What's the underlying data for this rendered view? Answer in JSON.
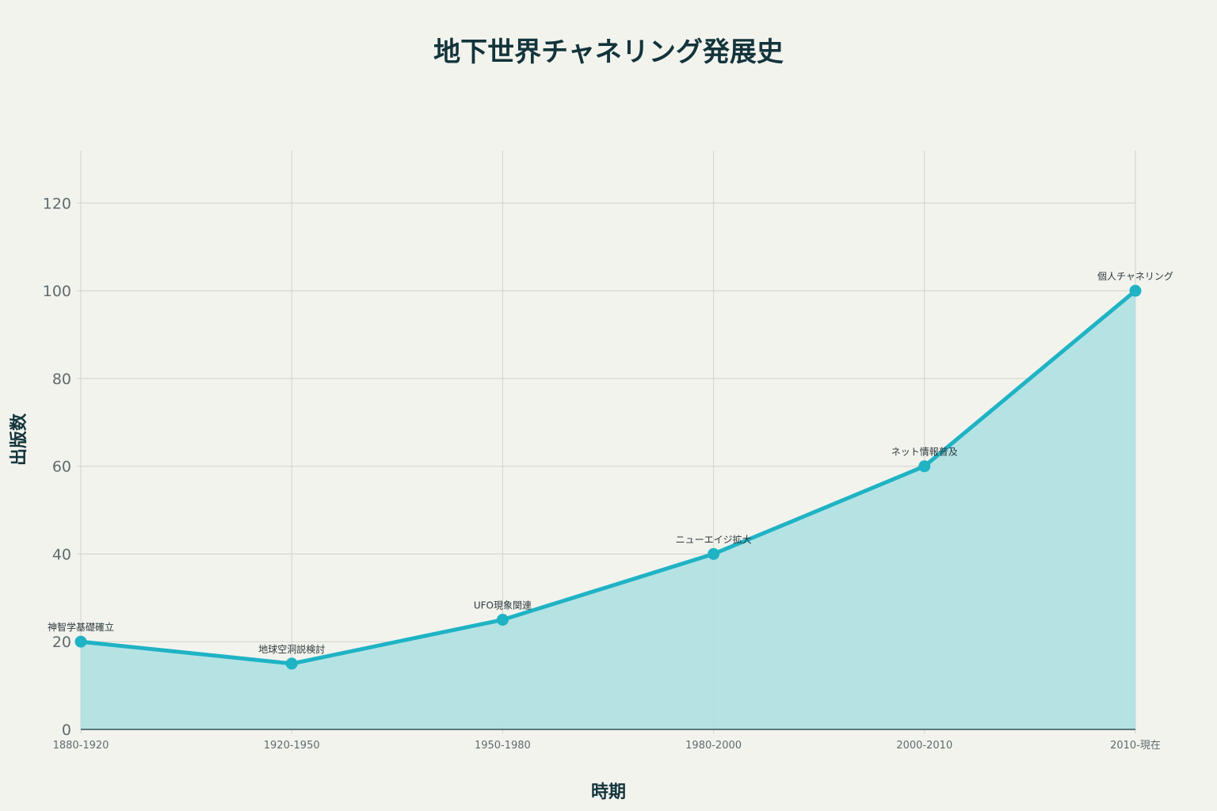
{
  "chart_data": {
    "type": "area",
    "title": "地下世界チャネリング発展史",
    "xlabel": "時期",
    "ylabel": "出版数",
    "categories": [
      "1880-1920",
      "1920-1950",
      "1950-1980",
      "1980-2000",
      "2000-2010",
      "2010-現在"
    ],
    "values": [
      20,
      15,
      25,
      40,
      60,
      100
    ],
    "point_labels": [
      "神智学基礎確立",
      "地球空洞説検討",
      "UFO現象関連",
      "ニューエイジ拡大",
      "ネット情報普及",
      "個人チャネリング"
    ],
    "ylim": [
      0,
      130
    ],
    "yticks": [
      0,
      20,
      40,
      60,
      80,
      100,
      120
    ],
    "grid": true,
    "colors": {
      "line": "#1fb3c4",
      "fill": "#b1e1e3",
      "grid": "#d2d2cc",
      "axis": "#13343b"
    }
  }
}
